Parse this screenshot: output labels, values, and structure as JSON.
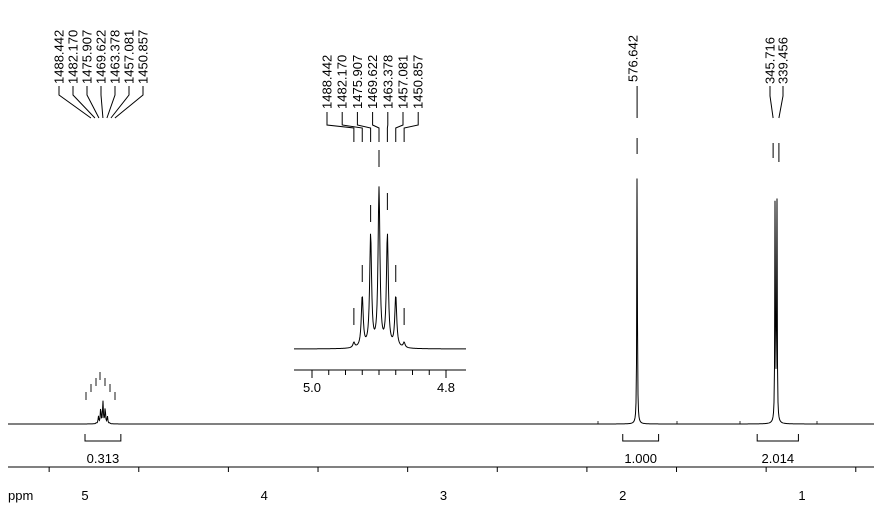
{
  "chart_data": {
    "type": "line",
    "title": "",
    "xlabel": "ppm",
    "x_reversed": true,
    "xlim": [
      5.33,
      0.6
    ],
    "x_ticks": [
      "5",
      "4",
      "3",
      "2",
      "1"
    ],
    "x_tick_values": [
      5,
      4,
      3,
      2,
      1
    ],
    "grid": false,
    "peaks": [
      {
        "ppm": 4.9,
        "height": 0.09,
        "label_group": "multiplet"
      },
      {
        "ppm": 1.92,
        "height": 0.98
      },
      {
        "ppm": 1.15,
        "height": 0.9
      },
      {
        "ppm": 1.14,
        "height": 0.88
      }
    ],
    "peak_labels": [
      {
        "group": "multiplet",
        "values": [
          "1488.442",
          "1482.170",
          "1475.907",
          "1469.622",
          "1463.378",
          "1457.081",
          "1450.857"
        ]
      },
      {
        "group": "singlet",
        "values": [
          "576.642"
        ]
      },
      {
        "group": "doublet",
        "values": [
          "345.716",
          "339.456"
        ]
      }
    ],
    "integrals": [
      {
        "from_ppm": 5.0,
        "to_ppm": 4.8,
        "value": "0.313"
      },
      {
        "from_ppm": 2.0,
        "to_ppm": 1.8,
        "value": "1.000"
      },
      {
        "from_ppm": 1.25,
        "to_ppm": 1.02,
        "value": "2.014"
      }
    ],
    "inset": {
      "type": "line",
      "xlim": [
        5.02,
        4.79
      ],
      "x_ticks": [
        "5.0",
        "4.8"
      ],
      "x_tick_values": [
        5.0,
        4.8
      ],
      "peak_labels": [
        "1488.442",
        "1482.170",
        "1475.907",
        "1469.622",
        "1463.378",
        "1457.081",
        "1450.857"
      ],
      "relative_heights": [
        0.03,
        0.3,
        0.66,
        0.93,
        0.66,
        0.3,
        0.03
      ]
    }
  }
}
